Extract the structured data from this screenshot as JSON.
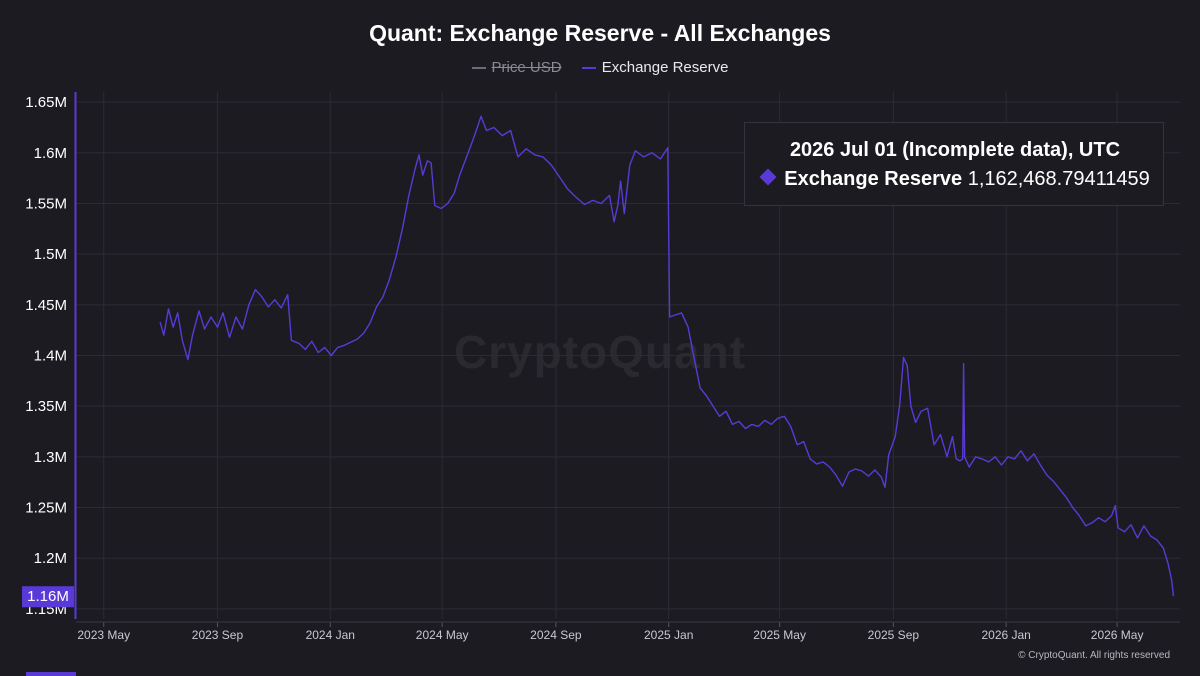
{
  "chart_data": {
    "type": "line",
    "title": "Quant: Exchange Reserve - All Exchanges",
    "legend": [
      {
        "name": "Price USD",
        "visible": false,
        "color": "#6c6c74"
      },
      {
        "name": "Exchange Reserve",
        "visible": true,
        "color": "#5a3ad6"
      }
    ],
    "legend_placement": "top-center",
    "grid": true,
    "x_axis": {
      "type": "date",
      "range": [
        "2023-04-01",
        "2026-07-08"
      ],
      "ticks": [
        {
          "date": "2023-05-01",
          "label": "2023 May"
        },
        {
          "date": "2023-09-01",
          "label": "2023 Sep"
        },
        {
          "date": "2024-01-01",
          "label": "2024 Jan"
        },
        {
          "date": "2024-05-01",
          "label": "2024 May"
        },
        {
          "date": "2024-09-01",
          "label": "2024 Sep"
        },
        {
          "date": "2025-01-01",
          "label": "2025 Jan"
        },
        {
          "date": "2025-05-01",
          "label": "2025 May"
        },
        {
          "date": "2025-09-01",
          "label": "2025 Sep"
        },
        {
          "date": "2026-01-01",
          "label": "2026 Jan"
        },
        {
          "date": "2026-05-01",
          "label": "2026 May"
        }
      ]
    },
    "y_axis": {
      "range": [
        1140000,
        1660000
      ],
      "ticks": [
        {
          "value": 1650000,
          "label": "1.65M"
        },
        {
          "value": 1600000,
          "label": "1.6M"
        },
        {
          "value": 1550000,
          "label": "1.55M"
        },
        {
          "value": 1500000,
          "label": "1.5M"
        },
        {
          "value": 1450000,
          "label": "1.45M"
        },
        {
          "value": 1400000,
          "label": "1.4M"
        },
        {
          "value": 1350000,
          "label": "1.35M"
        },
        {
          "value": 1300000,
          "label": "1.3M"
        },
        {
          "value": 1250000,
          "label": "1.25M"
        },
        {
          "value": 1200000,
          "label": "1.2M"
        },
        {
          "value": 1150000,
          "label": "1.15M"
        }
      ],
      "current_value_label": {
        "value": 1162468.79,
        "label": "1.16M"
      }
    },
    "series": [
      {
        "name": "Exchange Reserve",
        "color": "#5a3ad6",
        "points": [
          [
            "2023-07-01",
            1433000
          ],
          [
            "2023-07-05",
            1420000
          ],
          [
            "2023-07-10",
            1446000
          ],
          [
            "2023-07-15",
            1428000
          ],
          [
            "2023-07-20",
            1442000
          ],
          [
            "2023-07-25",
            1415000
          ],
          [
            "2023-07-31",
            1396000
          ],
          [
            "2023-08-05",
            1420000
          ],
          [
            "2023-08-12",
            1444000
          ],
          [
            "2023-08-18",
            1426000
          ],
          [
            "2023-08-25",
            1438000
          ],
          [
            "2023-09-01",
            1428000
          ],
          [
            "2023-09-07",
            1442000
          ],
          [
            "2023-09-14",
            1418000
          ],
          [
            "2023-09-21",
            1438000
          ],
          [
            "2023-09-28",
            1426000
          ],
          [
            "2023-10-05",
            1450000
          ],
          [
            "2023-10-12",
            1465000
          ],
          [
            "2023-10-19",
            1458000
          ],
          [
            "2023-10-26",
            1448000
          ],
          [
            "2023-11-02",
            1455000
          ],
          [
            "2023-11-09",
            1447000
          ],
          [
            "2023-11-16",
            1460000
          ],
          [
            "2023-11-20",
            1415000
          ],
          [
            "2023-11-28",
            1412000
          ],
          [
            "2023-12-05",
            1406000
          ],
          [
            "2023-12-12",
            1414000
          ],
          [
            "2023-12-19",
            1403000
          ],
          [
            "2023-12-26",
            1408000
          ],
          [
            "2024-01-02",
            1400000
          ],
          [
            "2024-01-09",
            1408000
          ],
          [
            "2024-01-16",
            1410000
          ],
          [
            "2024-01-23",
            1413000
          ],
          [
            "2024-01-30",
            1416000
          ],
          [
            "2024-02-06",
            1422000
          ],
          [
            "2024-02-13",
            1432000
          ],
          [
            "2024-02-20",
            1448000
          ],
          [
            "2024-02-27",
            1458000
          ],
          [
            "2024-03-05",
            1475000
          ],
          [
            "2024-03-12",
            1497000
          ],
          [
            "2024-03-19",
            1525000
          ],
          [
            "2024-03-26",
            1558000
          ],
          [
            "2024-04-02",
            1585000
          ],
          [
            "2024-04-06",
            1598000
          ],
          [
            "2024-04-10",
            1578000
          ],
          [
            "2024-04-15",
            1592000
          ],
          [
            "2024-04-19",
            1590000
          ],
          [
            "2024-04-23",
            1548000
          ],
          [
            "2024-04-30",
            1545000
          ],
          [
            "2024-05-07",
            1550000
          ],
          [
            "2024-05-14",
            1560000
          ],
          [
            "2024-05-20",
            1578000
          ],
          [
            "2024-05-27",
            1595000
          ],
          [
            "2024-06-03",
            1612000
          ],
          [
            "2024-06-08",
            1625000
          ],
          [
            "2024-06-12",
            1636000
          ],
          [
            "2024-06-18",
            1622000
          ],
          [
            "2024-06-26",
            1625000
          ],
          [
            "2024-07-05",
            1617000
          ],
          [
            "2024-07-14",
            1622000
          ],
          [
            "2024-07-22",
            1596000
          ],
          [
            "2024-07-31",
            1604000
          ],
          [
            "2024-08-09",
            1598000
          ],
          [
            "2024-08-18",
            1596000
          ],
          [
            "2024-08-27",
            1588000
          ],
          [
            "2024-09-05",
            1576000
          ],
          [
            "2024-09-14",
            1564000
          ],
          [
            "2024-09-23",
            1556000
          ],
          [
            "2024-10-02",
            1549000
          ],
          [
            "2024-10-11",
            1553000
          ],
          [
            "2024-10-20",
            1550000
          ],
          [
            "2024-10-29",
            1558000
          ],
          [
            "2024-11-03",
            1532000
          ],
          [
            "2024-11-07",
            1548000
          ],
          [
            "2024-11-10",
            1572000
          ],
          [
            "2024-11-14",
            1540000
          ],
          [
            "2024-11-20",
            1588000
          ],
          [
            "2024-11-26",
            1602000
          ],
          [
            "2024-12-05",
            1596000
          ],
          [
            "2024-12-14",
            1600000
          ],
          [
            "2024-12-23",
            1594000
          ],
          [
            "2024-12-31",
            1605000
          ],
          [
            "2025-01-02",
            1438000
          ],
          [
            "2025-01-08",
            1440000
          ],
          [
            "2025-01-15",
            1442000
          ],
          [
            "2025-01-22",
            1428000
          ],
          [
            "2025-01-28",
            1400000
          ],
          [
            "2025-02-04",
            1368000
          ],
          [
            "2025-02-11",
            1360000
          ],
          [
            "2025-02-18",
            1350000
          ],
          [
            "2025-02-25",
            1340000
          ],
          [
            "2025-03-04",
            1345000
          ],
          [
            "2025-03-11",
            1332000
          ],
          [
            "2025-03-18",
            1335000
          ],
          [
            "2025-03-25",
            1328000
          ],
          [
            "2025-04-01",
            1332000
          ],
          [
            "2025-04-08",
            1330000
          ],
          [
            "2025-04-15",
            1336000
          ],
          [
            "2025-04-22",
            1332000
          ],
          [
            "2025-04-29",
            1338000
          ],
          [
            "2025-05-06",
            1340000
          ],
          [
            "2025-05-13",
            1330000
          ],
          [
            "2025-05-20",
            1312000
          ],
          [
            "2025-05-27",
            1315000
          ],
          [
            "2025-06-03",
            1298000
          ],
          [
            "2025-06-10",
            1293000
          ],
          [
            "2025-06-17",
            1295000
          ],
          [
            "2025-06-24",
            1290000
          ],
          [
            "2025-07-01",
            1282000
          ],
          [
            "2025-07-08",
            1271000
          ],
          [
            "2025-07-15",
            1285000
          ],
          [
            "2025-07-22",
            1288000
          ],
          [
            "2025-07-29",
            1286000
          ],
          [
            "2025-08-05",
            1281000
          ],
          [
            "2025-08-12",
            1287000
          ],
          [
            "2025-08-19",
            1280000
          ],
          [
            "2025-08-23",
            1270000
          ],
          [
            "2025-08-27",
            1302000
          ],
          [
            "2025-09-03",
            1320000
          ],
          [
            "2025-09-08",
            1352000
          ],
          [
            "2025-09-12",
            1398000
          ],
          [
            "2025-09-16",
            1390000
          ],
          [
            "2025-09-20",
            1350000
          ],
          [
            "2025-09-25",
            1334000
          ],
          [
            "2025-10-01",
            1345000
          ],
          [
            "2025-10-08",
            1348000
          ],
          [
            "2025-10-15",
            1312000
          ],
          [
            "2025-10-22",
            1322000
          ],
          [
            "2025-10-29",
            1300000
          ],
          [
            "2025-11-04",
            1320000
          ],
          [
            "2025-11-08",
            1298000
          ],
          [
            "2025-11-12",
            1296000
          ],
          [
            "2025-11-15",
            1298000
          ],
          [
            "2025-11-16",
            1392000
          ],
          [
            "2025-11-17",
            1300000
          ],
          [
            "2025-11-22",
            1290000
          ],
          [
            "2025-11-29",
            1300000
          ],
          [
            "2025-12-06",
            1298000
          ],
          [
            "2025-12-13",
            1295000
          ],
          [
            "2025-12-20",
            1300000
          ],
          [
            "2025-12-27",
            1292000
          ],
          [
            "2026-01-03",
            1300000
          ],
          [
            "2026-01-10",
            1298000
          ],
          [
            "2026-01-17",
            1306000
          ],
          [
            "2026-01-24",
            1296000
          ],
          [
            "2026-01-31",
            1303000
          ],
          [
            "2026-02-07",
            1292000
          ],
          [
            "2026-02-14",
            1282000
          ],
          [
            "2026-02-21",
            1276000
          ],
          [
            "2026-02-28",
            1268000
          ],
          [
            "2026-03-07",
            1260000
          ],
          [
            "2026-03-14",
            1250000
          ],
          [
            "2026-03-21",
            1242000
          ],
          [
            "2026-03-28",
            1232000
          ],
          [
            "2026-04-04",
            1235000
          ],
          [
            "2026-04-11",
            1240000
          ],
          [
            "2026-04-18",
            1236000
          ],
          [
            "2026-04-25",
            1242000
          ],
          [
            "2026-04-29",
            1252000
          ],
          [
            "2026-05-02",
            1230000
          ],
          [
            "2026-05-09",
            1226000
          ],
          [
            "2026-05-16",
            1233000
          ],
          [
            "2026-05-23",
            1220000
          ],
          [
            "2026-05-30",
            1232000
          ],
          [
            "2026-06-06",
            1222000
          ],
          [
            "2026-06-13",
            1218000
          ],
          [
            "2026-06-20",
            1210000
          ],
          [
            "2026-06-25",
            1195000
          ],
          [
            "2026-06-29",
            1178000
          ],
          [
            "2026-07-01",
            1162468.79
          ]
        ]
      }
    ],
    "tooltip": {
      "date": "2026 Jul 01 (Incomplete data), UTC",
      "series_name": "Exchange Reserve",
      "value": "1,162,468.79411459"
    }
  },
  "watermark": "CryptoQuant",
  "copyright": "© CryptoQuant. All rights reserved"
}
